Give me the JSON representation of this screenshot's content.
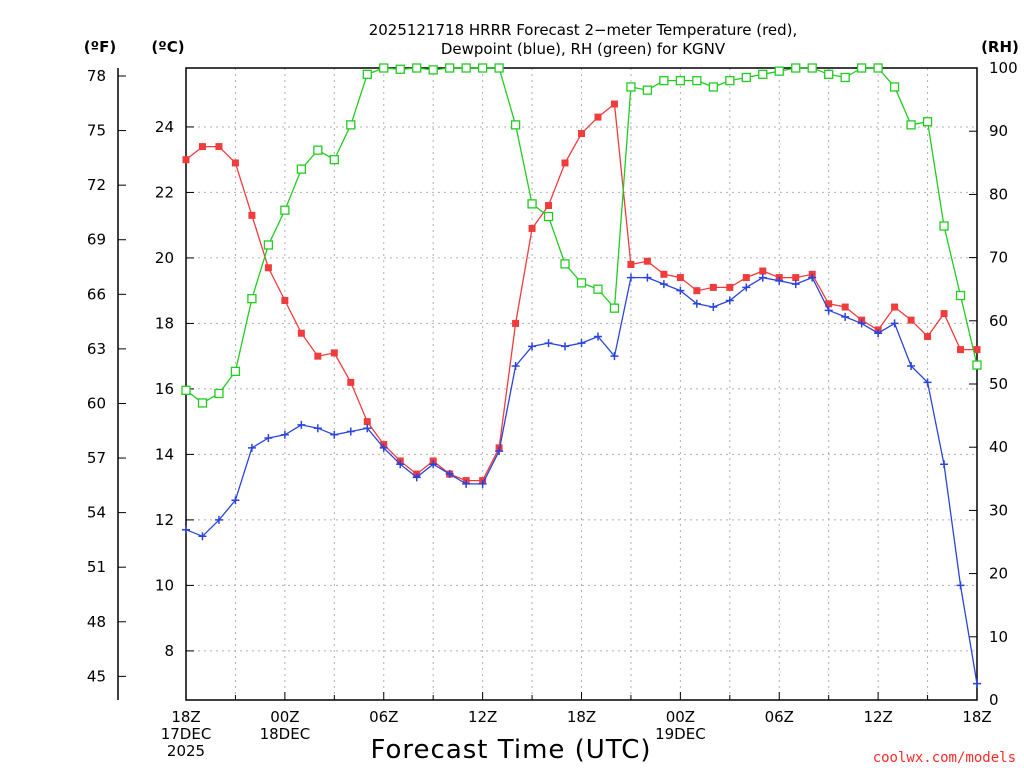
{
  "chart_data": {
    "type": "line",
    "title_line1": "2025121718 HRRR Forecast 2−meter Temperature (red),",
    "title_line2": "Dewpoint (blue), RH (green) for KGNV",
    "xlabel": "Forecast Time (UTC)",
    "credit": "coolwx.com/models",
    "units": {
      "fahrenheit": "(ºF)",
      "celsius": "(ºC)",
      "rh": "(RH)"
    },
    "x_range": [
      0,
      48
    ],
    "x_ticks": [
      {
        "hour": 0,
        "lines": [
          "18Z",
          "17DEC",
          "2025"
        ]
      },
      {
        "hour": 6,
        "lines": [
          "00Z",
          "18DEC"
        ]
      },
      {
        "hour": 12,
        "lines": [
          "06Z"
        ]
      },
      {
        "hour": 18,
        "lines": [
          "12Z"
        ]
      },
      {
        "hour": 24,
        "lines": [
          "18Z"
        ]
      },
      {
        "hour": 30,
        "lines": [
          "00Z",
          "19DEC"
        ]
      },
      {
        "hour": 36,
        "lines": [
          "06Z"
        ]
      },
      {
        "hour": 42,
        "lines": [
          "12Z"
        ]
      },
      {
        "hour": 48,
        "lines": [
          "18Z"
        ]
      }
    ],
    "celsius_range": [
      6.5,
      25.8
    ],
    "celsius_ticks": [
      "8",
      "10",
      "12",
      "14",
      "16",
      "18",
      "20",
      "22",
      "24"
    ],
    "fahrenheit_ticks": [
      "45",
      "48",
      "51",
      "54",
      "57",
      "60",
      "63",
      "66",
      "69",
      "72",
      "75",
      "78"
    ],
    "rh_range": [
      0,
      100
    ],
    "rh_ticks": [
      "0",
      "10",
      "20",
      "30",
      "40",
      "50",
      "60",
      "70",
      "80",
      "90",
      "100"
    ],
    "series": [
      {
        "name": "2-meter Temperature",
        "color": "#f03c3c",
        "marker": "filled-square",
        "axis": "celsius",
        "values": [
          23.0,
          23.4,
          23.4,
          22.9,
          21.3,
          19.7,
          18.7,
          17.7,
          17.0,
          17.1,
          16.2,
          15.0,
          14.3,
          13.8,
          13.4,
          13.8,
          13.4,
          13.2,
          13.2,
          14.2,
          18.0,
          20.9,
          21.6,
          22.9,
          23.8,
          24.3,
          24.7,
          19.8,
          19.9,
          19.5,
          19.4,
          19.0,
          19.1,
          19.1,
          19.4,
          19.6,
          19.4,
          19.4,
          19.5,
          18.6,
          18.5,
          18.1,
          17.8,
          18.5,
          18.1,
          17.6,
          18.3,
          17.2,
          17.2
        ]
      },
      {
        "name": "Dewpoint",
        "color": "#2a44dd",
        "marker": "plus",
        "axis": "celsius",
        "values": [
          11.7,
          11.5,
          12.0,
          12.6,
          14.2,
          14.5,
          14.6,
          14.9,
          14.8,
          14.6,
          14.7,
          14.8,
          14.2,
          13.7,
          13.3,
          13.7,
          13.4,
          13.1,
          13.1,
          14.1,
          16.7,
          17.3,
          17.4,
          17.3,
          17.4,
          17.6,
          17.0,
          19.4,
          19.4,
          19.2,
          19.0,
          18.6,
          18.5,
          18.7,
          19.1,
          19.4,
          19.3,
          19.2,
          19.4,
          18.4,
          18.2,
          18.0,
          17.7,
          18.0,
          16.7,
          16.2,
          13.7,
          10.0,
          7.0
        ]
      },
      {
        "name": "RH",
        "color": "#22cc22",
        "marker": "open-square",
        "axis": "rh",
        "values": [
          49,
          47,
          48.5,
          52,
          63.5,
          72,
          77.5,
          84,
          87,
          85.5,
          91,
          99,
          100,
          99.8,
          100,
          99.7,
          100,
          100,
          100,
          100,
          91,
          78.5,
          76.5,
          69,
          66,
          65,
          62,
          97,
          96.5,
          98,
          98,
          98,
          97,
          98,
          98.5,
          99,
          99.5,
          100,
          100,
          99,
          98.5,
          100,
          100,
          97,
          91,
          91.5,
          75,
          64,
          53
        ]
      }
    ]
  }
}
